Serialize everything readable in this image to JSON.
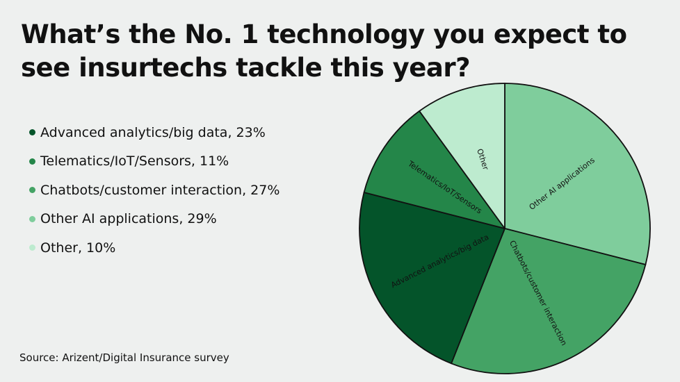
{
  "title": "What’s the No. 1 technology you expect to see insurtechs tackle this year?",
  "source": "Source: Arizent/Digital Insurance survey",
  "legend": [
    {
      "text": "Advanced analytics/big data, 23%",
      "color": "#04542a"
    },
    {
      "text": "Telematics/IoT/Sensors, 11%",
      "color": "#248649"
    },
    {
      "text": "Chatbots/customer interaction, 27%",
      "color": "#44a365"
    },
    {
      "text": "Other AI applications, 29%",
      "color": "#7fcd9c"
    },
    {
      "text": "Other, 10%",
      "color": "#bdebcf"
    }
  ],
  "chart_data": {
    "type": "pie",
    "slices": [
      {
        "label": "Other AI applications",
        "value": 29,
        "color": "#7fcd9c"
      },
      {
        "label": "Chatbots/customer interaction",
        "value": 27,
        "color": "#44a365"
      },
      {
        "label": "Advanced analytics/big data",
        "value": 23,
        "color": "#04542a"
      },
      {
        "label": "Telematics/IoT/Sensors",
        "value": 11,
        "color": "#248649"
      },
      {
        "label": "Other",
        "value": 10,
        "color": "#bdebcf"
      }
    ],
    "start": "top",
    "direction": "clockwise"
  }
}
